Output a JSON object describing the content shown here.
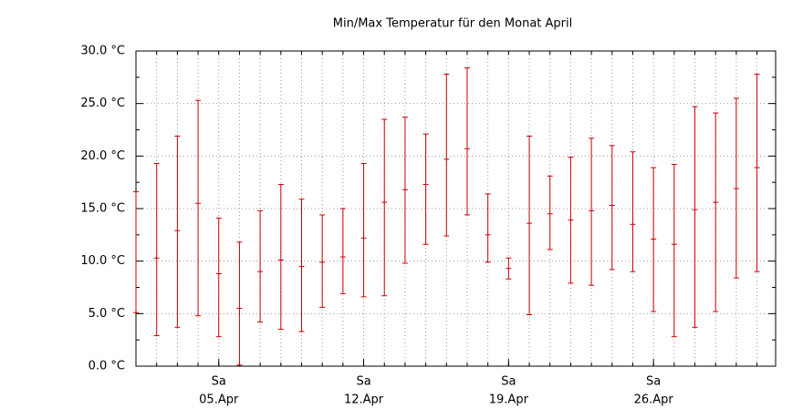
{
  "chart_data": {
    "type": "range",
    "title": "Min/Max Temperatur für den Monat April",
    "color": "#cc0000",
    "x": [
      1,
      2,
      3,
      4,
      5,
      6,
      7,
      8,
      9,
      10,
      11,
      12,
      13,
      14,
      15,
      16,
      17,
      18,
      19,
      20,
      21,
      22,
      23,
      24,
      25,
      26,
      27,
      28,
      29,
      30,
      31
    ],
    "low": [
      5.1,
      2.9,
      3.7,
      4.8,
      2.8,
      0.1,
      4.2,
      3.5,
      3.3,
      5.6,
      6.9,
      6.6,
      6.7,
      9.8,
      11.6,
      12.4,
      14.4,
      9.9,
      8.3,
      4.9,
      11.1,
      7.9,
      7.7,
      9.2,
      9.0,
      5.2,
      2.8,
      3.7,
      5.2,
      8.4,
      9.0
    ],
    "mid": [
      null,
      10.3,
      12.9,
      15.5,
      8.8,
      5.5,
      9.0,
      10.1,
      9.5,
      9.9,
      10.4,
      12.2,
      15.6,
      16.8,
      17.3,
      19.7,
      20.7,
      12.5,
      9.3,
      13.6,
      14.5,
      13.9,
      14.8,
      15.3,
      13.5,
      12.1,
      11.6,
      14.9,
      15.6,
      16.9,
      18.9
    ],
    "high": [
      16.6,
      19.3,
      21.9,
      25.3,
      14.1,
      11.8,
      14.8,
      17.3,
      15.9,
      14.4,
      15.0,
      19.3,
      23.5,
      23.7,
      22.1,
      27.8,
      28.4,
      16.4,
      10.3,
      21.9,
      18.1,
      19.9,
      21.7,
      21.0,
      20.4,
      18.9,
      19.2,
      24.7,
      24.1,
      25.5,
      27.8
    ],
    "xlim": [
      1,
      31.9
    ],
    "xticks": [
      {
        "value": 5,
        "weekday": "Sa",
        "label": "05.Apr"
      },
      {
        "value": 12,
        "weekday": "Sa",
        "label": "12.Apr"
      },
      {
        "value": 19,
        "weekday": "Sa",
        "label": "19.Apr"
      },
      {
        "value": 26,
        "weekday": "Sa",
        "label": "26.Apr"
      }
    ],
    "xminorticks": [
      2,
      3,
      4,
      5,
      6,
      7,
      8,
      9,
      10,
      11,
      12,
      13,
      14,
      15,
      16,
      17,
      18,
      19,
      20,
      21,
      22,
      23,
      24,
      25,
      26,
      27,
      28,
      29,
      30,
      31
    ],
    "ylim": [
      0,
      30
    ],
    "yticks": [
      {
        "value": 0,
        "label": "0.0 °C"
      },
      {
        "value": 5,
        "label": "5.0 °C"
      },
      {
        "value": 10,
        "label": "10.0 °C"
      },
      {
        "value": 15,
        "label": "15.0 °C"
      },
      {
        "value": 20,
        "label": "20.0 °C"
      },
      {
        "value": 25,
        "label": "25.0 °C"
      },
      {
        "value": 30,
        "label": "30.0 °C"
      }
    ],
    "yminorticks": [
      2.5,
      7.5,
      12.5,
      17.5,
      22.5,
      27.5
    ],
    "grid": true
  }
}
